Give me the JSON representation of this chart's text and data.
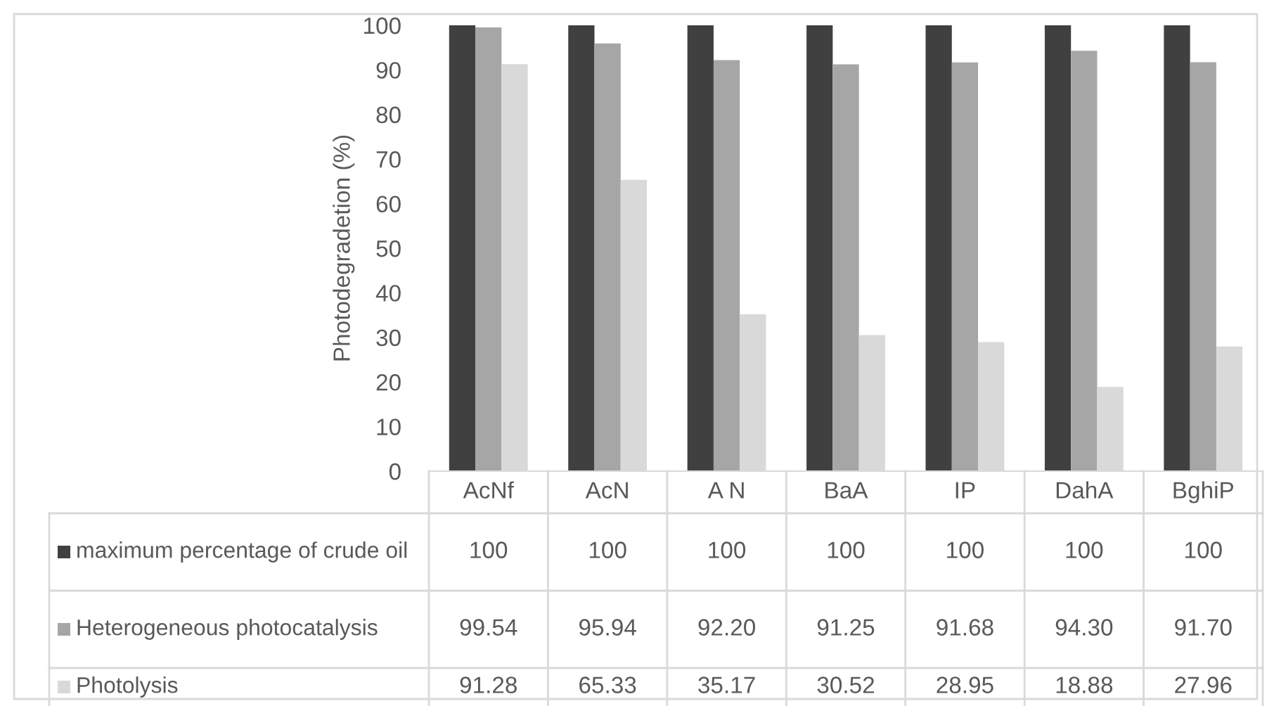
{
  "chart_data": {
    "type": "bar",
    "ylabel": "Photodegradetion (%)",
    "categories": [
      "AcNf",
      "AcN",
      "A N",
      "BaA",
      "IP",
      "DahA",
      "BghiP"
    ],
    "ylim": [
      0,
      100
    ],
    "yticks": [
      0,
      10,
      20,
      30,
      40,
      50,
      60,
      70,
      80,
      90,
      100
    ],
    "grid": false,
    "legend": "bottom",
    "series": [
      {
        "name": "maximum percentage of crude oil",
        "color": "#404040",
        "values": [
          100,
          100,
          100,
          100,
          100,
          100,
          100
        ],
        "value_labels": [
          "100",
          "100",
          "100",
          "100",
          "100",
          "100",
          "100"
        ]
      },
      {
        "name": "Heterogeneous photocatalysis",
        "color": "#a6a6a6",
        "values": [
          99.54,
          95.94,
          92.2,
          91.25,
          91.68,
          94.3,
          91.7
        ],
        "value_labels": [
          "99.54",
          "95.94",
          "92.20",
          "91.25",
          "91.68",
          "94.30",
          "91.70"
        ]
      },
      {
        "name": "Photolysis",
        "color": "#d9d9d9",
        "values": [
          91.28,
          65.33,
          35.17,
          30.52,
          28.95,
          18.88,
          27.96
        ],
        "value_labels": [
          "91.28",
          "65.33",
          "35.17",
          "30.52",
          "28.95",
          "18.88",
          "27.96"
        ]
      }
    ]
  }
}
